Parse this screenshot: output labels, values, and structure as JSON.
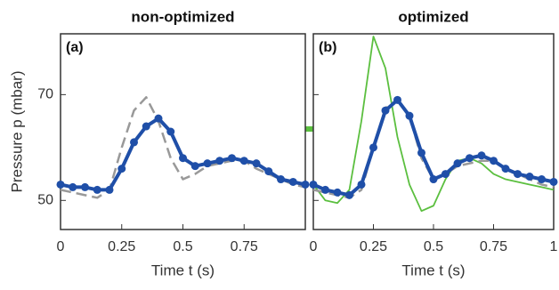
{
  "chart_data": [
    {
      "type": "line",
      "title": "non-optimized",
      "panel_label": "(a)",
      "xlabel": "Time t (s)",
      "ylabel": "Pressure p (mbar)",
      "x": [
        0,
        0.05,
        0.1,
        0.15,
        0.2,
        0.25,
        0.3,
        0.35,
        0.4,
        0.45,
        0.5,
        0.55,
        0.6,
        0.65,
        0.7,
        0.75,
        0.8,
        0.85,
        0.9,
        0.95,
        1
      ],
      "series": [
        {
          "color": "#999999",
          "dashed": true,
          "values": [
            52,
            51.5,
            51,
            50.5,
            52,
            60,
            67,
            69.5,
            65,
            58,
            54,
            55,
            56.5,
            57,
            57.5,
            57.5,
            56,
            55,
            54,
            53,
            52.5
          ]
        },
        {
          "color": "#1f4fa8",
          "marker": true,
          "values": [
            53,
            52.5,
            52.5,
            52,
            52,
            56,
            61,
            64,
            65.5,
            63,
            58,
            56.5,
            57,
            57.5,
            58,
            57.5,
            57,
            55.5,
            54,
            53.5,
            53
          ]
        }
      ],
      "xlim": [
        0,
        1
      ],
      "ylim": [
        44.5,
        81.5
      ],
      "xticks": [
        0,
        0.25,
        0.5,
        0.75
      ],
      "yticks": [
        50,
        70
      ]
    },
    {
      "type": "line",
      "title": "optimized",
      "panel_label": "(b)",
      "xlabel": "Time t (s)",
      "x": [
        0,
        0.05,
        0.1,
        0.15,
        0.2,
        0.25,
        0.3,
        0.35,
        0.4,
        0.45,
        0.5,
        0.55,
        0.6,
        0.65,
        0.7,
        0.75,
        0.8,
        0.85,
        0.9,
        0.95,
        1
      ],
      "series": [
        {
          "color": "#5bbf3f",
          "values": [
            53,
            50,
            49.5,
            52,
            65,
            81,
            75,
            62,
            53,
            48,
            49,
            54,
            57.5,
            58,
            57,
            55,
            54,
            53.5,
            53,
            52.5,
            52
          ]
        },
        {
          "color": "#999999",
          "dashed": true,
          "values": [
            52,
            51.5,
            51,
            50.5,
            52,
            60,
            67.5,
            69,
            66,
            58,
            54,
            55,
            56.5,
            57,
            57.5,
            57.5,
            56,
            55,
            54,
            53,
            52.5
          ]
        },
        {
          "color": "#1f4fa8",
          "marker": true,
          "values": [
            53,
            52,
            51.5,
            51,
            53,
            60,
            67,
            69,
            66,
            59,
            54,
            55,
            57,
            58,
            58.5,
            57.5,
            56,
            55,
            54.5,
            54,
            53.5
          ]
        }
      ],
      "xlim": [
        0,
        1
      ],
      "ylim": [
        44.5,
        81.5
      ],
      "xticks": [
        0,
        0.25,
        0.5,
        0.75,
        1
      ],
      "yticks": [
        50,
        70
      ]
    }
  ]
}
